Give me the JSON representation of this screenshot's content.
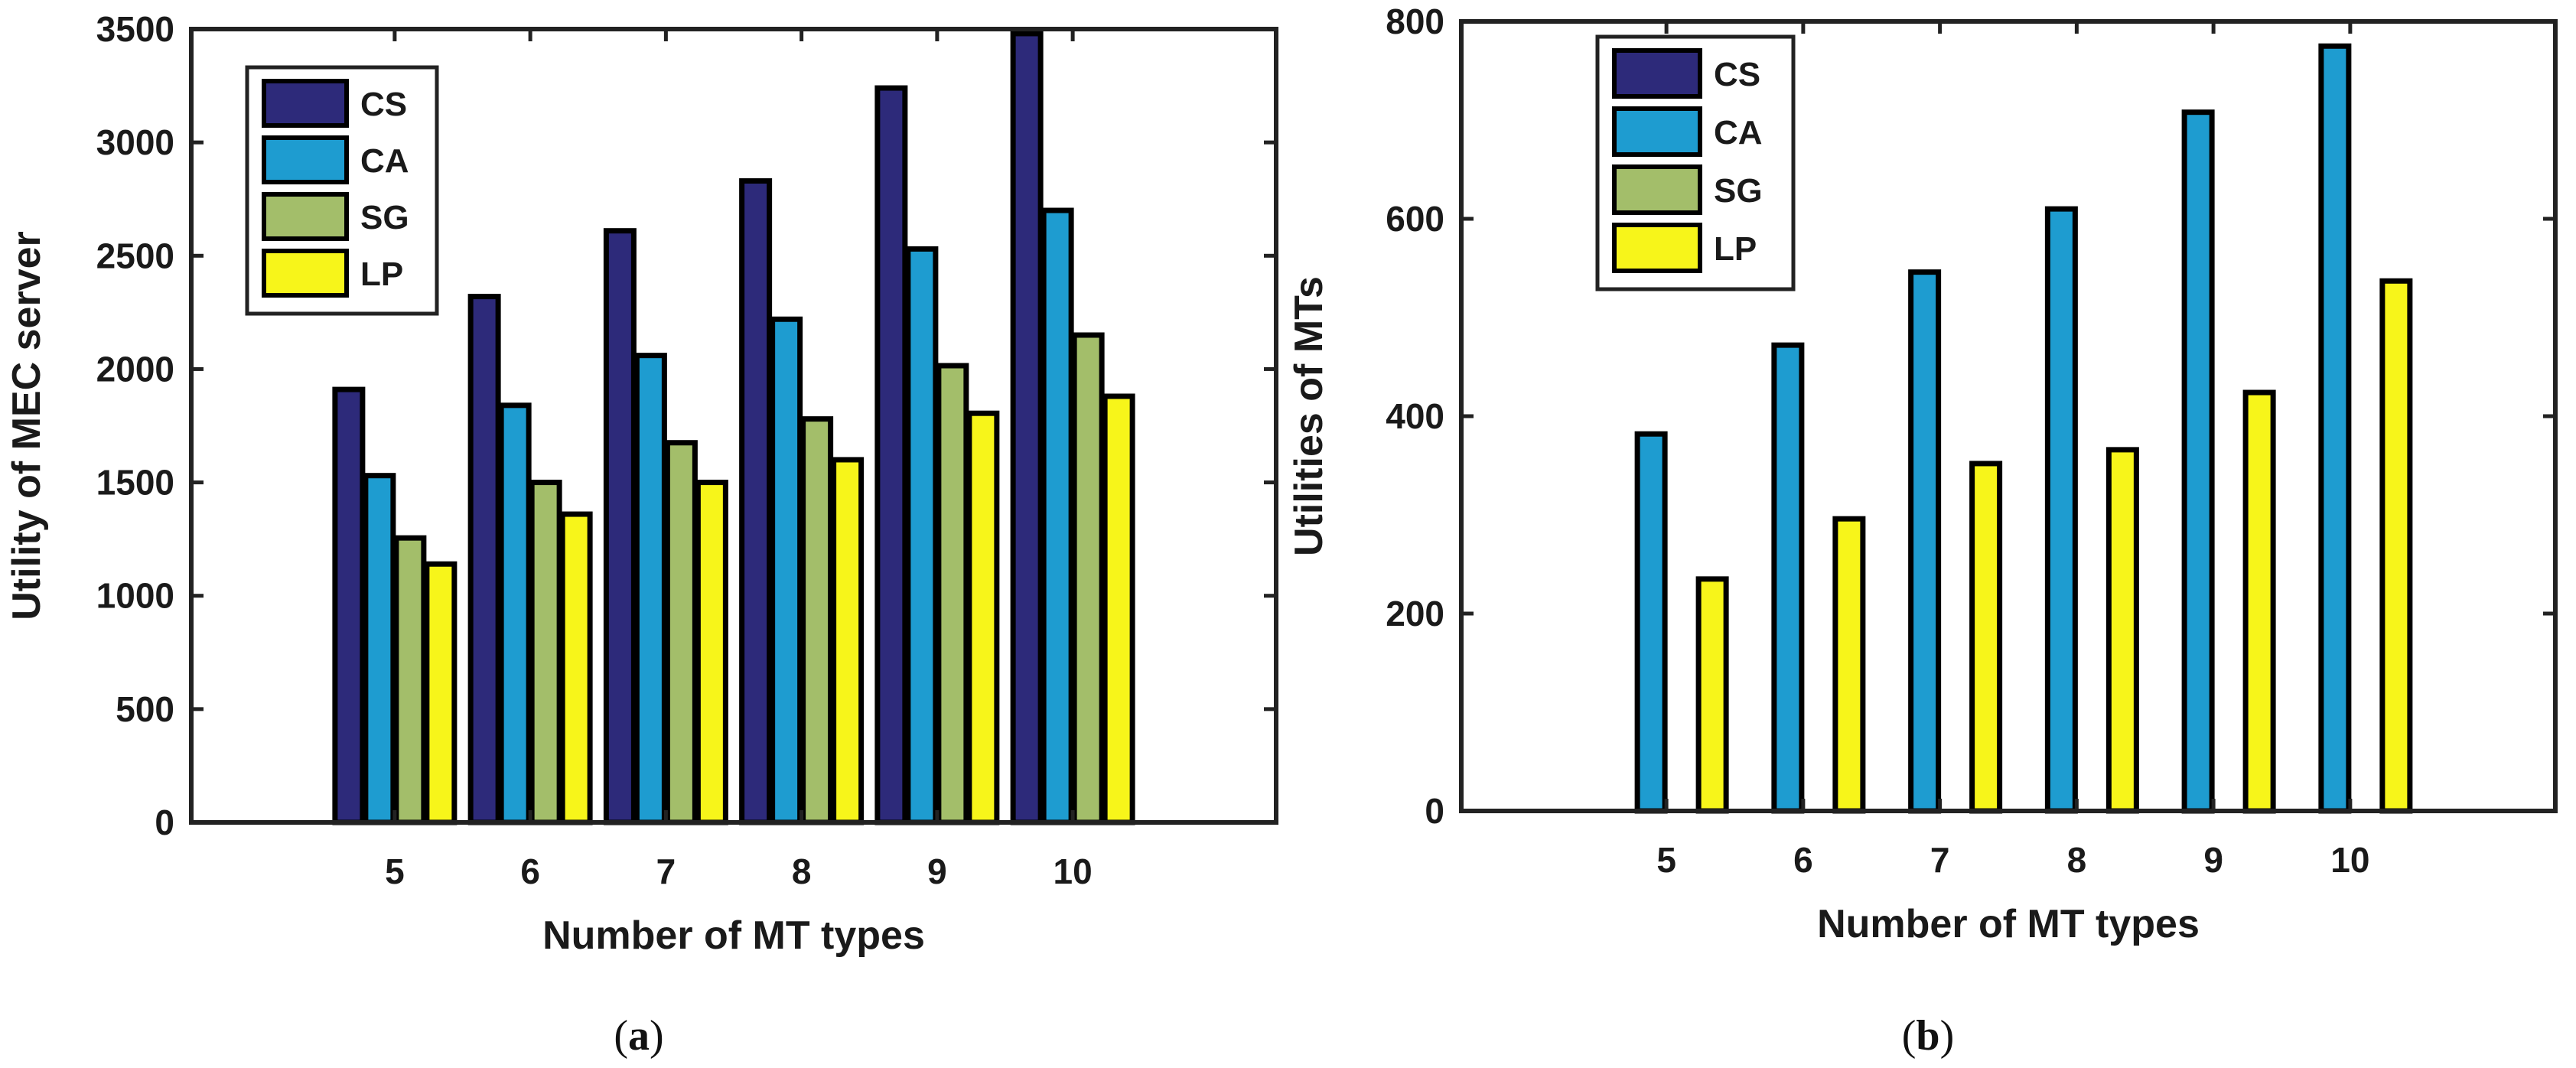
{
  "chart_data": [
    {
      "type": "bar",
      "id": "a",
      "caption_letter": "a",
      "xlabel": "Number of MT types",
      "ylabel": "Utility of MEC server",
      "categories": [
        "5",
        "6",
        "7",
        "8",
        "9",
        "10"
      ],
      "ylim": [
        0,
        3500
      ],
      "yticks": [
        0,
        500,
        1000,
        1500,
        2000,
        2500,
        3000,
        3500
      ],
      "legend_position": "top-left",
      "series": [
        {
          "name": "CS",
          "color": "#2d2a7a",
          "values": [
            1910,
            2320,
            2610,
            2830,
            3240,
            3480
          ]
        },
        {
          "name": "CA",
          "color": "#1e9cd0",
          "values": [
            1530,
            1840,
            2060,
            2220,
            2530,
            2700
          ]
        },
        {
          "name": "SG",
          "color": "#a3be6a",
          "values": [
            1255,
            1500,
            1675,
            1780,
            2015,
            2150
          ]
        },
        {
          "name": "LP",
          "color": "#f7f51a",
          "values": [
            1140,
            1360,
            1500,
            1600,
            1805,
            1880
          ]
        }
      ]
    },
    {
      "type": "bar",
      "id": "b",
      "caption_letter": "b",
      "xlabel": "Number of MT types",
      "ylabel": "Utilities of MTs",
      "categories": [
        "5",
        "6",
        "7",
        "8",
        "9",
        "10"
      ],
      "ylim": [
        0,
        800
      ],
      "yticks": [
        0,
        200,
        400,
        600,
        800
      ],
      "legend_position": "top-left",
      "series": [
        {
          "name": "CS",
          "color": "#2d2a7a",
          "values": [
            0,
            0,
            0,
            0,
            0,
            0
          ]
        },
        {
          "name": "CA",
          "color": "#1e9cd0",
          "values": [
            382,
            472,
            546,
            610,
            708,
            775
          ]
        },
        {
          "name": "SG",
          "color": "#a3be6a",
          "values": [
            0,
            0,
            0,
            0,
            0,
            0
          ]
        },
        {
          "name": "LP",
          "color": "#f7f51a",
          "values": [
            235,
            296,
            352,
            366,
            424,
            537
          ]
        }
      ]
    }
  ]
}
